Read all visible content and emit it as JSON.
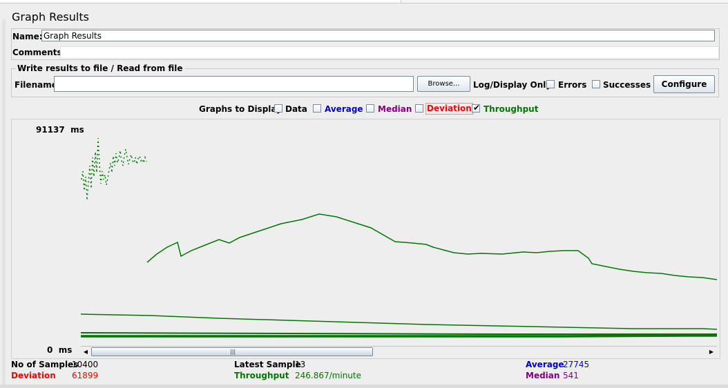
{
  "window": {
    "title": "Graph Results"
  },
  "name_field": {
    "label": "Name:",
    "value": "Graph Results"
  },
  "comments_field": {
    "label": "Comments:",
    "value": ""
  },
  "file_panel": {
    "title": "Write results to file / Read from file",
    "filename_label": "Filename",
    "filename_value": "",
    "browse_label": "Browse...",
    "log_display_label": "Log/Display Only:",
    "errors_label": "Errors",
    "successes_label": "Successes",
    "configure_label": "Configure"
  },
  "graphs_to_display": {
    "label": "Graphs to Display",
    "options": [
      {
        "label": "Data",
        "checked": false,
        "color": "#000000"
      },
      {
        "label": "Average",
        "checked": false,
        "color": "#0000cc"
      },
      {
        "label": "Median",
        "checked": false,
        "color": "#800080"
      },
      {
        "label": "Deviation",
        "checked": false,
        "color": "#ff0000"
      },
      {
        "label": "Throughput",
        "checked": true,
        "color": "#007700"
      }
    ]
  },
  "chart": {
    "y_max_label": "91137",
    "y_min_label": "0",
    "y_unit": "ms"
  },
  "stats": {
    "no_of_samples_label": "No of Samples",
    "no_of_samples": "10400",
    "latest_sample_label": "Latest Sample",
    "latest_sample": "13",
    "average_label": "Average",
    "average": "27745",
    "deviation_label": "Deviation",
    "deviation": "61899",
    "throughput_label": "Throughput",
    "throughput": "246.867/minute",
    "median_label": "Median",
    "median": "541"
  },
  "colors": {
    "throughput": "#007700",
    "average": "#0000cc",
    "median": "#800080",
    "deviation": "#ff0000"
  }
}
